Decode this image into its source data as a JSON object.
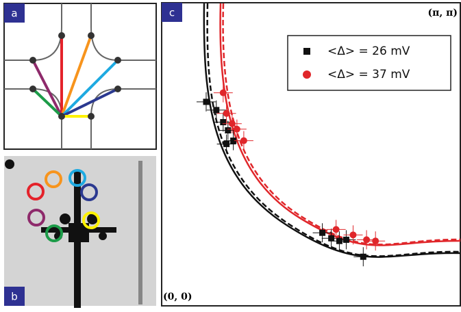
{
  "panels": {
    "a": "a",
    "b": "b",
    "c": "c"
  },
  "chart_data": {
    "type": "scatter",
    "corner_labels": {
      "origin": "(0, 0)",
      "end": "(π, π)"
    },
    "xlim": [
      0,
      1
    ],
    "ylim": [
      0,
      1
    ],
    "series": [
      {
        "name": "<Δ> = 26 mV",
        "color": "#111111",
        "x": [
          0.149,
          0.183,
          0.206,
          0.222,
          0.24,
          0.217,
          0.538,
          0.568,
          0.595,
          0.618,
          0.675
        ],
        "values": [
          0.673,
          0.646,
          0.606,
          0.579,
          0.545,
          0.534,
          0.241,
          0.223,
          0.214,
          0.218,
          0.162
        ]
      },
      {
        "name": "<Δ> = 37 mV",
        "color": "#e0262a",
        "x": [
          0.206,
          0.217,
          0.236,
          0.252,
          0.275,
          0.584,
          0.641,
          0.686,
          0.716
        ],
        "values": [
          0.703,
          0.635,
          0.601,
          0.583,
          0.545,
          0.252,
          0.234,
          0.218,
          0.214
        ]
      }
    ]
  }
}
